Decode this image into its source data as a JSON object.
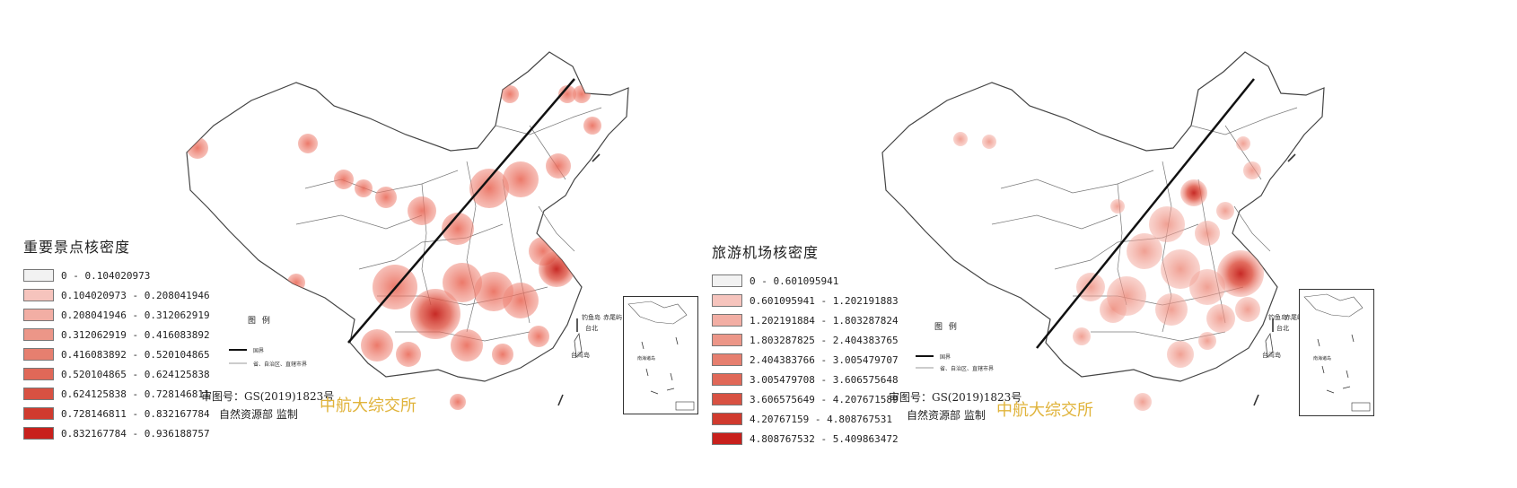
{
  "watermark": "中航大综交所",
  "approval": {
    "line1": "审图号：GS(2019)1823号",
    "line2": "自然资源部 监制"
  },
  "maps": [
    {
      "legend_title": "重要景点核密度",
      "classes": [
        {
          "label": "0 - 0.104020973",
          "color": "#f2f2f2"
        },
        {
          "label": "0.104020973 - 0.208041946",
          "color": "#f6c4bd"
        },
        {
          "label": "0.208041946 - 0.312062919",
          "color": "#f2aea4"
        },
        {
          "label": "0.312062919 - 0.416083892",
          "color": "#ec9688"
        },
        {
          "label": "0.416083892 - 0.520104865",
          "color": "#e67f6f"
        },
        {
          "label": "0.520104865 - 0.624125838",
          "color": "#e06858"
        },
        {
          "label": "0.624125838 - 0.728146811",
          "color": "#d85142"
        },
        {
          "label": "0.728146811 - 0.832167784",
          "color": "#d03a2e"
        },
        {
          "label": "0.832167784 - 0.936188757",
          "color": "#c8201c"
        }
      ]
    },
    {
      "legend_title": "旅游机场核密度",
      "classes": [
        {
          "label": "0 - 0.601095941",
          "color": "#f2f2f2"
        },
        {
          "label": "0.601095941 - 1.202191883",
          "color": "#f6c4bd"
        },
        {
          "label": "1.202191884 - 1.803287824",
          "color": "#f2aea4"
        },
        {
          "label": "1.803287825 - 2.404383765",
          "color": "#ec9688"
        },
        {
          "label": "2.404383766 - 3.005479707",
          "color": "#e67f6f"
        },
        {
          "label": "3.005479708 - 3.606575648",
          "color": "#e06858"
        },
        {
          "label": "3.606575649 - 4.207671589",
          "color": "#d85142"
        },
        {
          "label": "4.20767159 - 4.808767531",
          "color": "#d03a2e"
        },
        {
          "label": "4.808767532 - 5.409863472",
          "color": "#c8201c"
        }
      ]
    }
  ],
  "map_legend": {
    "title": "图 例",
    "border": "国界",
    "province": "省、自治区、直辖市界"
  },
  "labels": {
    "taiwan": "台湾岛",
    "diaoyu": "钓鱼岛",
    "chiwei": "赤尾屿",
    "taibei": "台北",
    "south_sea": "南海诸岛"
  }
}
